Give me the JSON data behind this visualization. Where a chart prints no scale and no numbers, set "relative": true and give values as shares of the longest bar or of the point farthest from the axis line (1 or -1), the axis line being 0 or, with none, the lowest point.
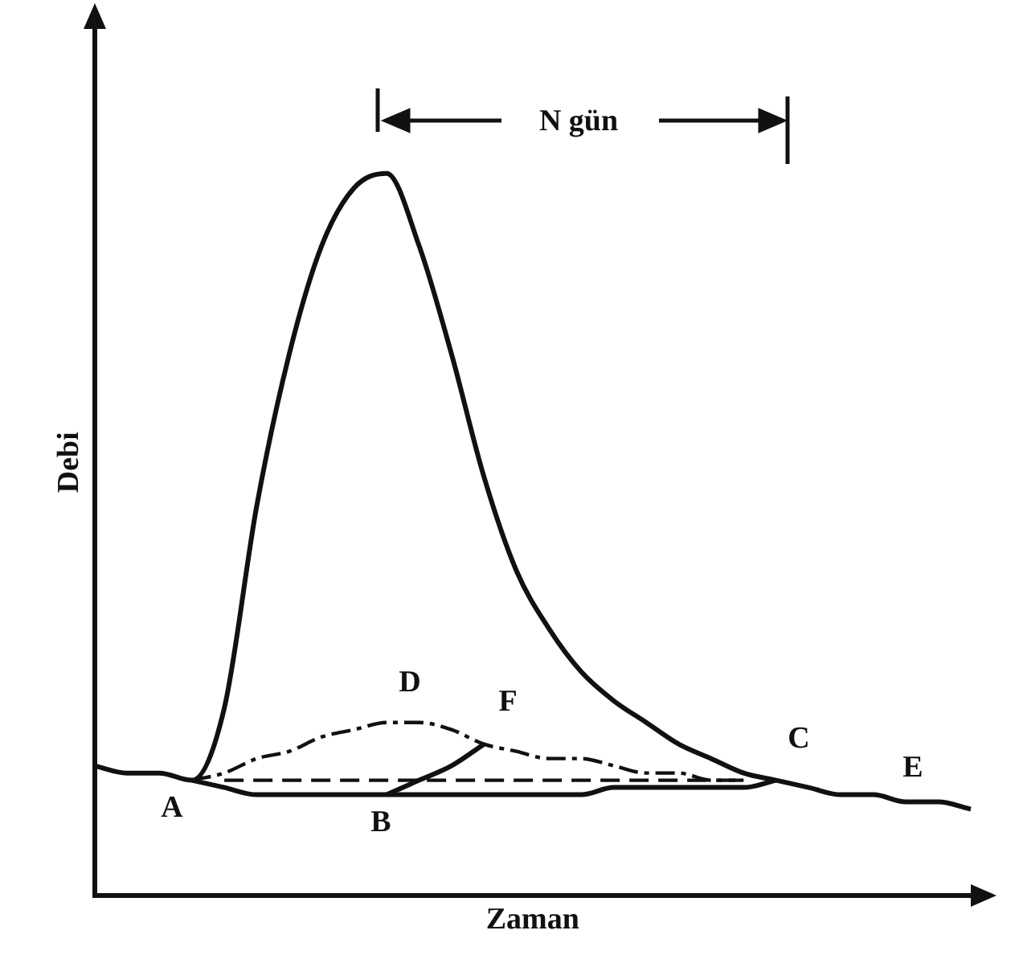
{
  "chart_data": {
    "type": "line",
    "relative": true,
    "xlabel": "Zaman",
    "ylabel": "Debi",
    "legend": false,
    "grid": false,
    "marker": "none",
    "categories": [
      null,
      null,
      null,
      null,
      null,
      null,
      null,
      null,
      null,
      null,
      null,
      null,
      null,
      null,
      null,
      null,
      null,
      null,
      null,
      null,
      null,
      null,
      null,
      null,
      null,
      null,
      null,
      null
    ],
    "series": [
      {
        "color": "#111111",
        "line_style": "solid",
        "values": [
          0.18,
          0.17,
          0.17,
          0.16,
          0.26,
          0.54,
          0.75,
          0.9,
          0.98,
          1.0,
          0.9,
          0.75,
          0.58,
          0.45,
          0.37,
          0.31,
          0.27,
          0.24,
          0.21,
          0.19,
          0.17,
          0.16,
          0.15,
          0.14,
          0.14,
          0.13,
          0.13,
          0.12
        ]
      },
      {
        "color": "#111111",
        "line_style": "solid",
        "values": [
          null,
          null,
          null,
          0.16,
          0.15,
          0.14,
          0.14,
          0.14,
          0.14,
          0.14,
          0.14,
          0.14,
          0.14,
          0.14,
          0.14,
          0.14,
          0.15,
          0.15,
          0.15,
          0.15,
          0.15,
          0.16,
          null,
          null,
          null,
          null,
          null,
          null
        ]
      },
      {
        "color": "#111111",
        "line_style": "dashed",
        "values": [
          null,
          null,
          null,
          null,
          0.16,
          0.16,
          0.16,
          0.16,
          0.16,
          0.16,
          0.16,
          0.16,
          0.16,
          0.16,
          0.16,
          0.16,
          0.16,
          0.16,
          0.16,
          0.16,
          0.16,
          null,
          null,
          null,
          null,
          null,
          null,
          null
        ]
      },
      {
        "color": "#111111",
        "line_style": "dashdot",
        "values": [
          null,
          null,
          null,
          0.16,
          0.17,
          0.19,
          0.2,
          0.22,
          0.23,
          0.24,
          0.24,
          0.23,
          0.21,
          0.2,
          0.19,
          0.19,
          0.18,
          0.17,
          0.17,
          0.16,
          0.16,
          null,
          null,
          null,
          null,
          null,
          null,
          null
        ]
      },
      {
        "color": "#111111",
        "line_style": "solid",
        "values": [
          null,
          null,
          null,
          null,
          null,
          null,
          null,
          null,
          null,
          0.14,
          0.16,
          0.18,
          0.21,
          null,
          null,
          null,
          null,
          null,
          null,
          null,
          null,
          null,
          null,
          null,
          null,
          null,
          null,
          null
        ]
      }
    ],
    "annotations": [
      "A",
      "B",
      "C",
      "D",
      "E",
      "F",
      "N gün"
    ]
  }
}
